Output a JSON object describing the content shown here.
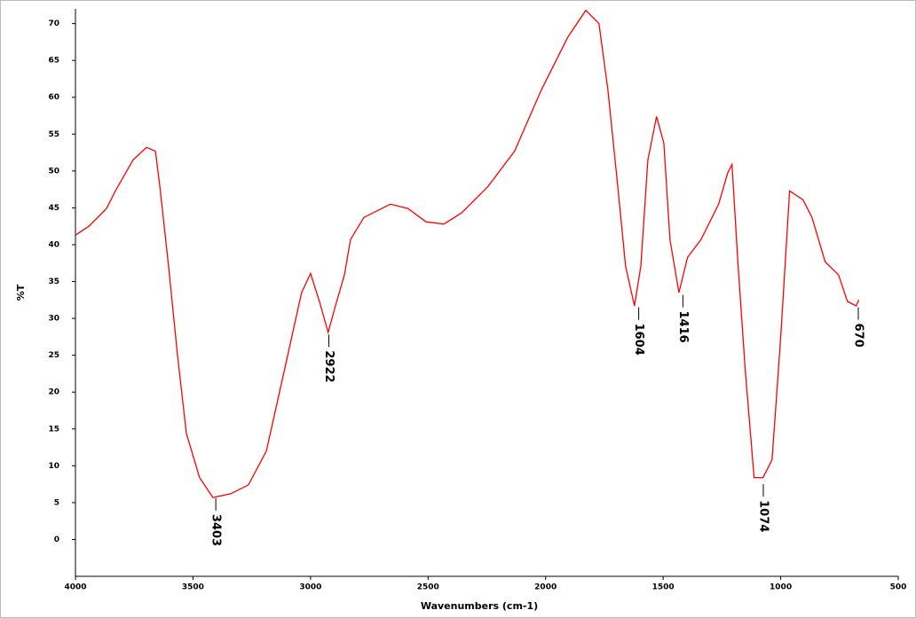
{
  "chart_data": {
    "type": "line",
    "xlabel": "Wavenumbers (cm-1)",
    "ylabel": "%T",
    "color": "#ff0000",
    "xlim": [
      4000,
      500
    ],
    "ylim": [
      -5,
      72
    ],
    "xticks": [
      4000,
      3500,
      3000,
      2500,
      2000,
      1500,
      1000,
      500
    ],
    "yticks": [
      0,
      5,
      10,
      15,
      20,
      25,
      30,
      35,
      40,
      45,
      50,
      55,
      60,
      65,
      70
    ],
    "x": [
      4000,
      3943,
      3868,
      3830,
      3755,
      3698,
      3660,
      3641,
      3604,
      3566,
      3528,
      3472,
      3415,
      3340,
      3264,
      3188,
      3113,
      3038,
      3000,
      2962,
      2925,
      2894,
      2856,
      2830,
      2773,
      2660,
      2585,
      2509,
      2433,
      2358,
      2245,
      2132,
      2018,
      1905,
      1829,
      1773,
      1735,
      1697,
      1660,
      1622,
      1595,
      1565,
      1528,
      1497,
      1471,
      1433,
      1396,
      1339,
      1264,
      1226,
      1207,
      1181,
      1150,
      1113,
      1075,
      1037,
      1000,
      962,
      905,
      867,
      811,
      754,
      716,
      679,
      668
    ],
    "values": [
      41.3,
      42.5,
      44.9,
      47.3,
      51.5,
      53.2,
      52.7,
      47.9,
      37.1,
      25.1,
      14.4,
      8.4,
      5.7,
      6.2,
      7.4,
      12.0,
      22.7,
      33.5,
      36.1,
      32.3,
      28.1,
      31.7,
      35.9,
      40.7,
      43.7,
      45.5,
      44.9,
      43.1,
      42.8,
      44.3,
      47.9,
      52.7,
      61.0,
      68.2,
      71.8,
      70.0,
      61.0,
      49.1,
      37.1,
      31.7,
      37.1,
      51.5,
      57.4,
      53.8,
      40.7,
      33.5,
      38.3,
      40.7,
      45.5,
      49.7,
      50.9,
      37.1,
      22.7,
      8.4,
      8.4,
      10.8,
      27.5,
      47.3,
      46.1,
      43.7,
      37.7,
      35.9,
      32.3,
      31.7,
      32.5
    ],
    "peaks": [
      {
        "x": 3403,
        "y": 5.6
      },
      {
        "x": 2922,
        "y": 27.8
      },
      {
        "x": 1604,
        "y": 31.5
      },
      {
        "x": 1416,
        "y": 33.2
      },
      {
        "x": 1074,
        "y": 7.5
      },
      {
        "x": 670,
        "y": 31.5
      }
    ]
  }
}
